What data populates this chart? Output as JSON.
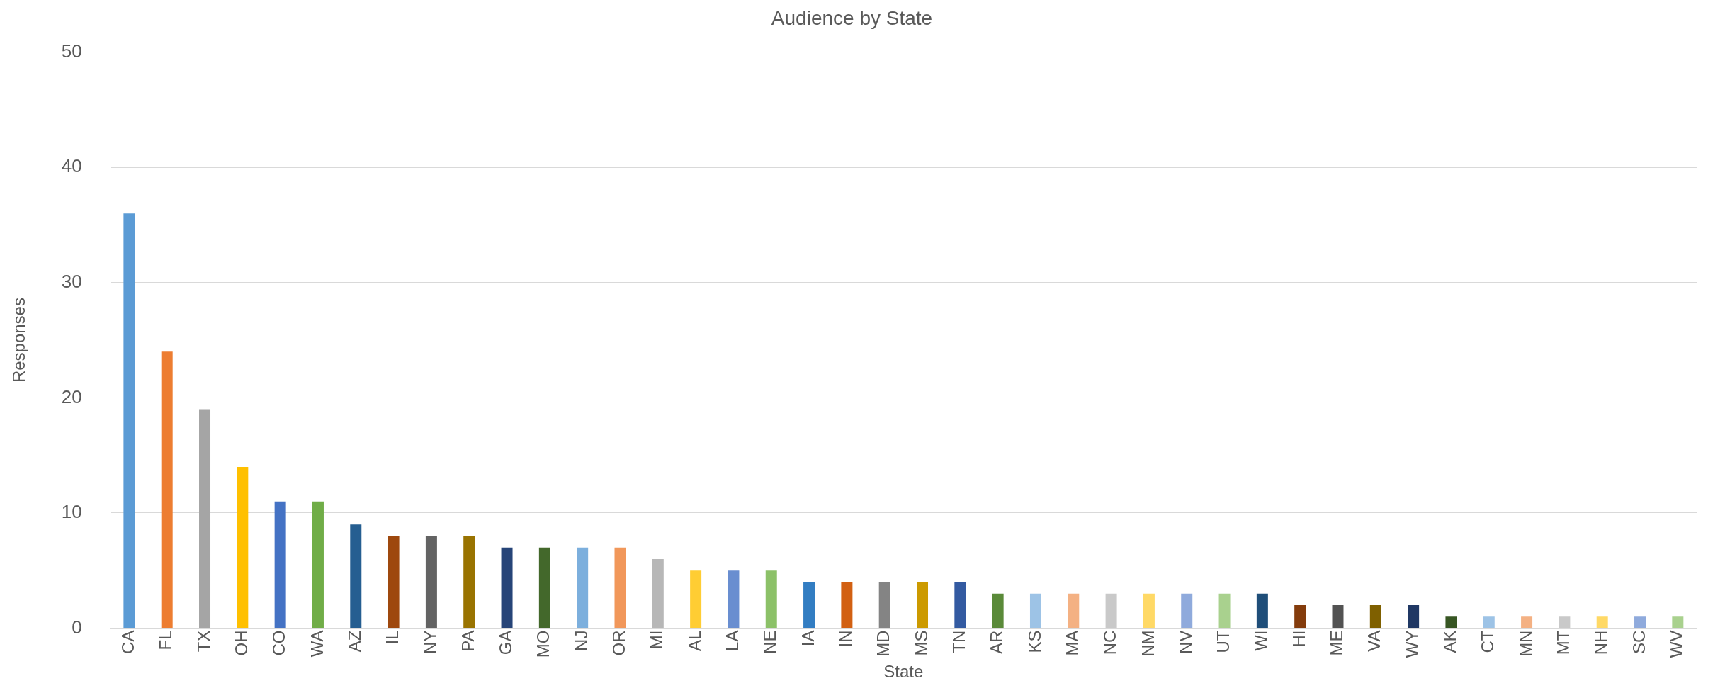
{
  "chart_data": {
    "type": "bar",
    "title": "Audience by State",
    "xlabel": "State",
    "ylabel": "Responses",
    "categories": [
      "CA",
      "FL",
      "TX",
      "OH",
      "CO",
      "WA",
      "AZ",
      "IL",
      "NY",
      "PA",
      "GA",
      "MO",
      "NJ",
      "OR",
      "MI",
      "AL",
      "LA",
      "NE",
      "IA",
      "IN",
      "MD",
      "MS",
      "TN",
      "AR",
      "KS",
      "MA",
      "NC",
      "NM",
      "NV",
      "UT",
      "WI",
      "HI",
      "ME",
      "VA",
      "WY",
      "AK",
      "CT",
      "MN",
      "MT",
      "NH",
      "SC",
      "WV"
    ],
    "values": [
      36,
      24,
      19,
      14,
      11,
      11,
      9,
      8,
      8,
      8,
      7,
      7,
      7,
      7,
      6,
      5,
      5,
      5,
      4,
      4,
      4,
      4,
      4,
      3,
      3,
      3,
      3,
      3,
      3,
      3,
      3,
      2,
      2,
      2,
      2,
      1,
      1,
      1,
      1,
      1,
      1,
      1
    ],
    "colors": [
      "#5b9bd5",
      "#ed7d31",
      "#a5a5a5",
      "#ffc000",
      "#4472c4",
      "#70ad47",
      "#255e91",
      "#9e480e",
      "#636363",
      "#997300",
      "#264478",
      "#43682b",
      "#7cafdd",
      "#f1975a",
      "#b7b7b7",
      "#ffcd33",
      "#698ed0",
      "#8cc168",
      "#327dc2",
      "#d26012",
      "#848484",
      "#cc9a00",
      "#335aa1",
      "#5a8a39",
      "#9dc3e6",
      "#f4b183",
      "#c9c9c9",
      "#ffd966",
      "#8faadc",
      "#a9d18e",
      "#1f4e79",
      "#843c0c",
      "#525252",
      "#7f6000",
      "#203864",
      "#375623",
      "#9dc3e6",
      "#f4b183",
      "#c9c9c9",
      "#ffd966",
      "#8faadc",
      "#a9d18e"
    ],
    "ylim": [
      0,
      50
    ],
    "yticks": [
      0,
      10,
      20,
      30,
      40,
      50
    ],
    "grid": "y",
    "legend": false
  }
}
